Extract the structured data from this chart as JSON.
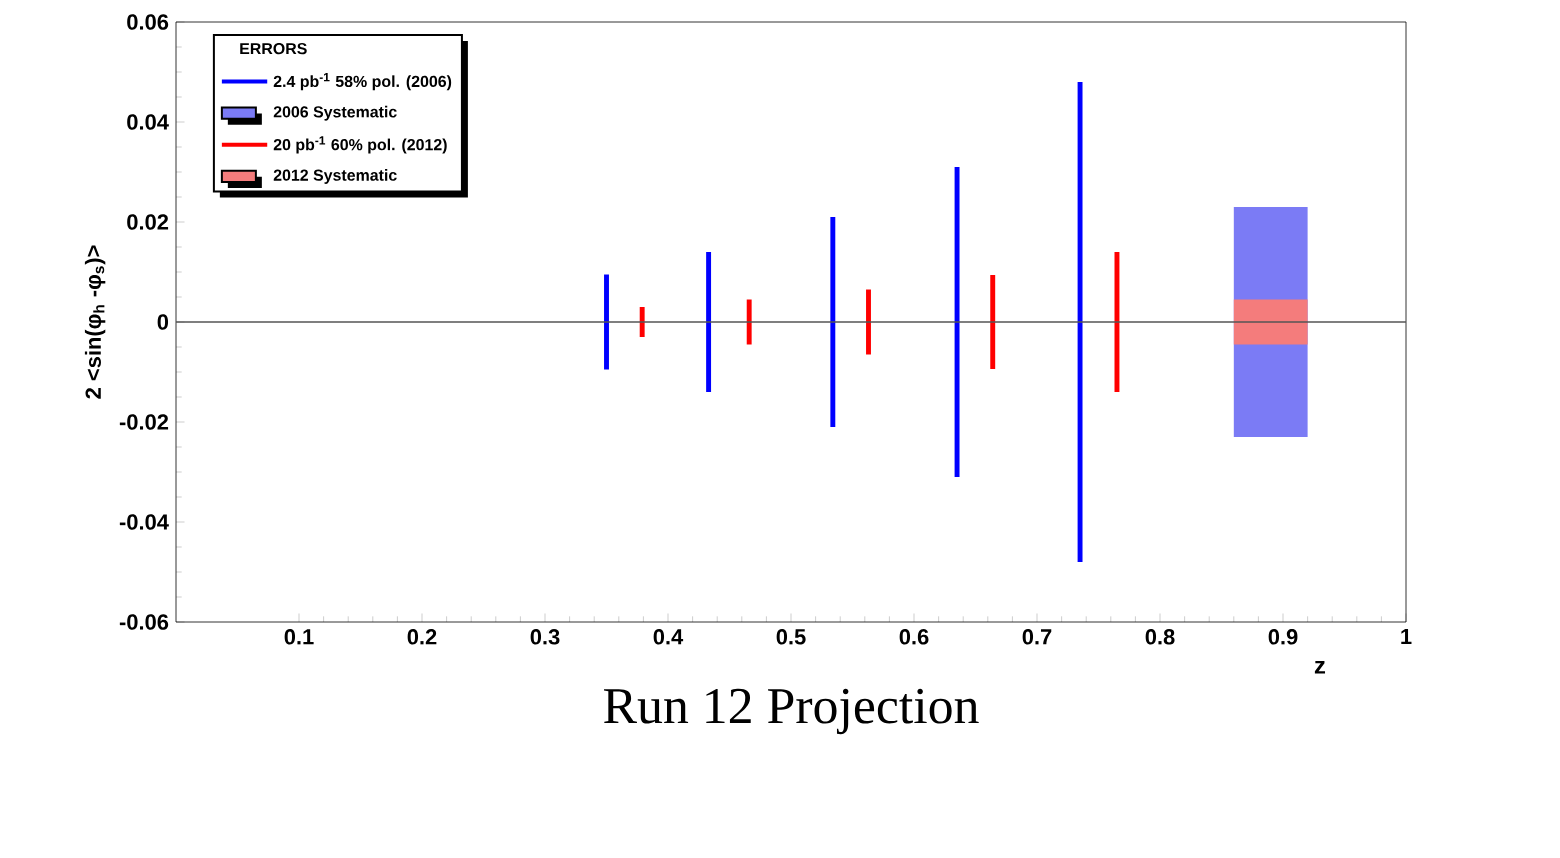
{
  "chart_data": {
    "type": "bar",
    "xlabel": "z",
    "ylabel": "2 <sin(φ$_{h}$ -φ$_{s}$)>",
    "legend_title": "ERRORS",
    "xlim": [
      0,
      1
    ],
    "ylim": [
      -0.06,
      0.06
    ],
    "xticks": [
      0.1,
      0.2,
      0.3,
      0.4,
      0.5,
      0.6,
      0.7,
      0.8,
      0.9,
      1
    ],
    "yticks": [
      -0.06,
      -0.04,
      -0.02,
      0,
      0.02,
      0.04,
      0.06
    ],
    "grid": false,
    "legend": "top left",
    "ref_lines": [
      {
        "axis": "y",
        "value": 0,
        "color": "#555555"
      }
    ],
    "annotations": [
      "Run 12 Projection"
    ],
    "series": [
      {
        "name": "2.4 pb$^{-1}$ 58% pol. (2006)",
        "color": "#0000ff",
        "x": [
          0.35,
          0.433,
          0.534,
          0.635,
          0.735
        ],
        "base": [
          -0.0095,
          -0.014,
          -0.021,
          -0.031,
          -0.048
        ],
        "values": [
          0.019,
          0.028,
          0.042,
          0.062,
          0.096
        ]
      },
      {
        "name": "2006 Systematic",
        "color": "#7b7bf5",
        "x": [
          0.89
        ],
        "base": [
          -0.023
        ],
        "values": [
          0.046
        ]
      },
      {
        "name": "20 pb$^{-1}$ 60% pol. (2012)",
        "color": "#ff0000",
        "x": [
          0.379,
          0.466,
          0.563,
          0.664,
          0.765
        ],
        "base": [
          -0.003,
          -0.0045,
          -0.0065,
          -0.0094,
          -0.014
        ],
        "values": [
          0.006,
          0.009,
          0.013,
          0.0188,
          0.028
        ]
      },
      {
        "name": "2012 Systematic",
        "color": "#f47c7c",
        "x": [
          0.89
        ],
        "base": [
          -0.0045
        ],
        "values": [
          0.009
        ]
      }
    ]
  }
}
